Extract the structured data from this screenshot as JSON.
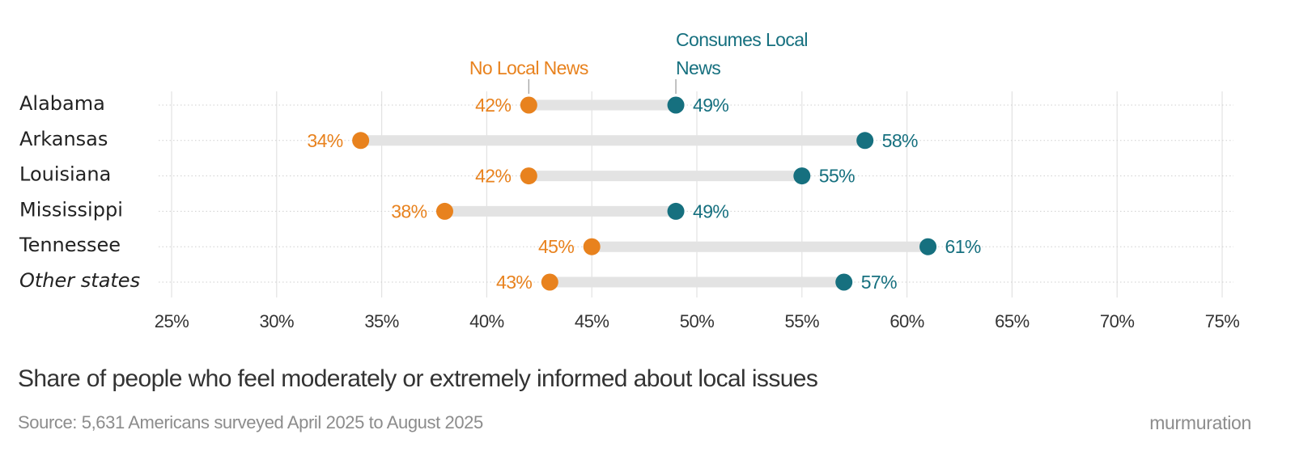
{
  "chart_data": {
    "type": "dumbbell",
    "title": "Share of people who feel moderately or extremely informed about local issues",
    "source": "Source: 5,631 Americans surveyed April 2025 to August 2025",
    "brand": "murmuration",
    "xlim": [
      25,
      75
    ],
    "x_ticks": [
      25,
      30,
      35,
      40,
      45,
      50,
      55,
      60,
      65,
      70,
      75
    ],
    "x_tick_labels": [
      "25%",
      "30%",
      "35%",
      "40%",
      "45%",
      "50%",
      "55%",
      "60%",
      "65%",
      "70%",
      "75%"
    ],
    "categories": [
      "Alabama",
      "Arkansas",
      "Louisiana",
      "Mississippi",
      "Tennessee",
      "Other states"
    ],
    "italic_categories": [
      "Other states"
    ],
    "series": [
      {
        "name": "No Local News",
        "color": "#e8821e",
        "values": [
          42,
          34,
          42,
          38,
          45,
          43
        ],
        "labels": [
          "42%",
          "34%",
          "42%",
          "38%",
          "45%",
          "43%"
        ]
      },
      {
        "name": "Consumes Local News",
        "name_lines": [
          "Consumes Local",
          "News"
        ],
        "color": "#16707f",
        "values": [
          49,
          58,
          55,
          49,
          61,
          57
        ],
        "labels": [
          "49%",
          "58%",
          "55%",
          "49%",
          "61%",
          "57%"
        ]
      }
    ],
    "legend": "direct labels above first row",
    "grid": true
  },
  "colors": {
    "no_local": "#e8821e",
    "consumes_local": "#16707f",
    "connector": "#e3e3e3",
    "grid": "#e2e2e2",
    "text": "#333333",
    "muted": "#8c8c8c"
  }
}
